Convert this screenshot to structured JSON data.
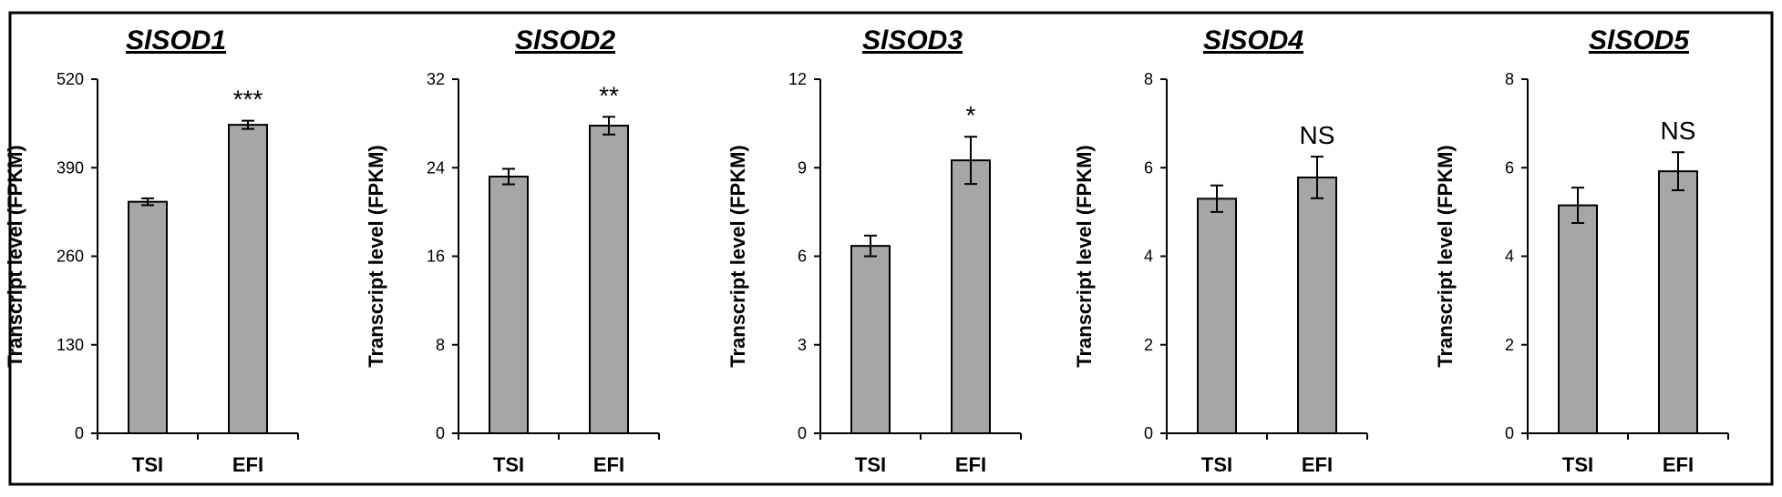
{
  "chart_data": [
    {
      "type": "bar",
      "title": "SlSOD1",
      "ylabel": "Transcript level (FPKM)",
      "xlabel": "",
      "categories": [
        "TSI",
        "EFI"
      ],
      "values": [
        340,
        453
      ],
      "errors": [
        5,
        6
      ],
      "ylim": [
        0,
        520
      ],
      "yticks": [
        0,
        130,
        260,
        390,
        520
      ],
      "significance": "***"
    },
    {
      "type": "bar",
      "title": "SlSOD2",
      "ylabel": "Transcript level (FPKM)",
      "xlabel": "",
      "categories": [
        "TSI",
        "EFI"
      ],
      "values": [
        23.2,
        27.8
      ],
      "errors": [
        0.7,
        0.8
      ],
      "ylim": [
        0,
        32
      ],
      "yticks": [
        0,
        8,
        16,
        24,
        32
      ],
      "significance": "**"
    },
    {
      "type": "bar",
      "title": "SlSOD3",
      "ylabel": "Transcript level (FPKM)",
      "xlabel": "",
      "categories": [
        "TSI",
        "EFI"
      ],
      "values": [
        6.35,
        9.25
      ],
      "errors": [
        0.35,
        0.8
      ],
      "ylim": [
        0,
        12
      ],
      "yticks": [
        0,
        3,
        6,
        9,
        12
      ],
      "significance": "*"
    },
    {
      "type": "bar",
      "title": "SlSOD4",
      "ylabel": "Transcript level (FPKM)",
      "xlabel": "",
      "categories": [
        "TSI",
        "EFI"
      ],
      "values": [
        5.3,
        5.78
      ],
      "errors": [
        0.3,
        0.47
      ],
      "ylim": [
        0,
        8
      ],
      "yticks": [
        0,
        2,
        4,
        6,
        8
      ],
      "significance": "NS"
    },
    {
      "type": "bar",
      "title": "SlSOD5",
      "ylabel": "Transcript level (FPKM)",
      "xlabel": "",
      "categories": [
        "TSI",
        "EFI"
      ],
      "values": [
        5.15,
        5.92
      ],
      "errors": [
        0.4,
        0.43
      ],
      "ylim": [
        0,
        8
      ],
      "yticks": [
        0,
        2,
        4,
        6,
        8
      ],
      "significance": "NS"
    }
  ],
  "colors": {
    "bar_fill": "#a6a6a6",
    "bar_stroke": "#000000",
    "frame": "#000000"
  }
}
